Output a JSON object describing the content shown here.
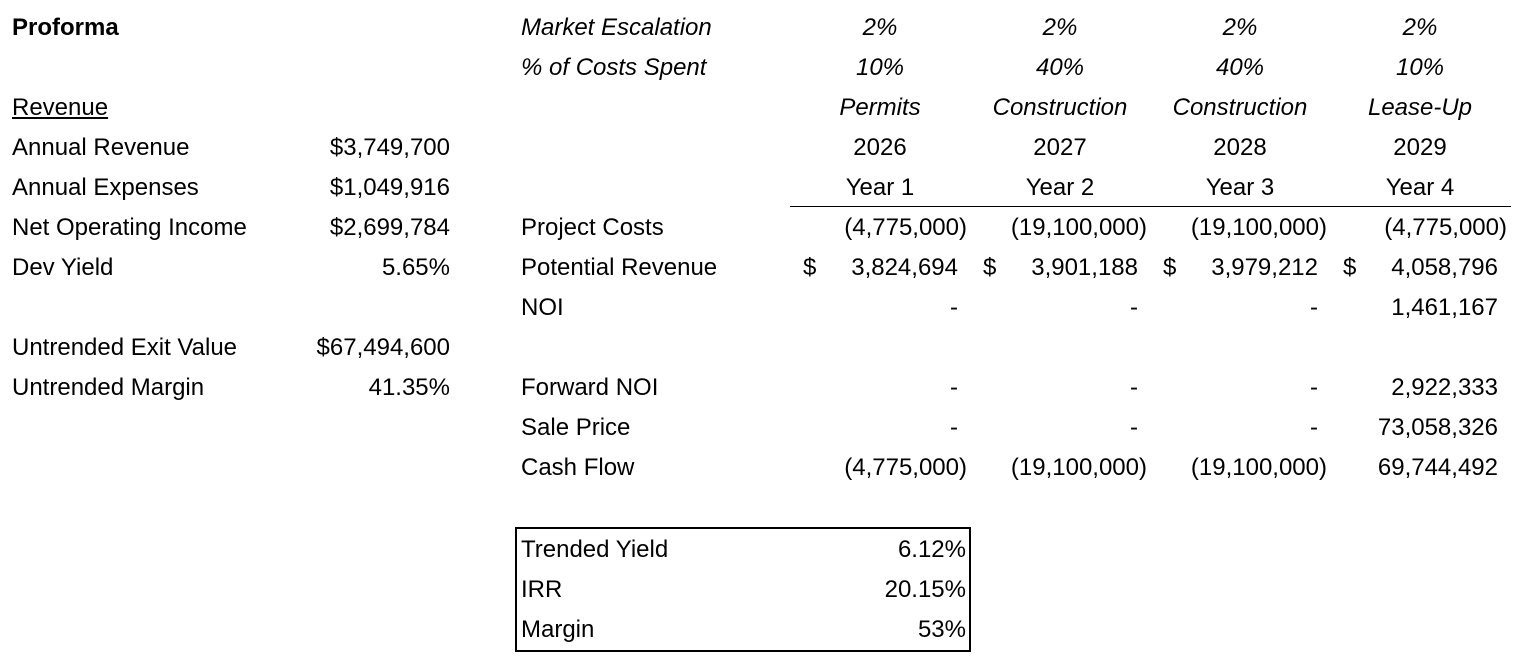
{
  "left": {
    "title": "Proforma",
    "revenue_header": "Revenue",
    "rows": [
      {
        "label": "Annual Revenue",
        "value": "$3,749,700"
      },
      {
        "label": "Annual Expenses",
        "value": "$1,049,916"
      },
      {
        "label": "Net Operating Income",
        "value": "$2,699,784"
      },
      {
        "label": "Dev Yield",
        "value": "5.65%"
      }
    ],
    "rows2": [
      {
        "label": "Untrended Exit Value",
        "value": "$67,494,600"
      },
      {
        "label": "Untrended Margin",
        "value": "41.35%"
      }
    ]
  },
  "right": {
    "market_escalation_label": "Market Escalation",
    "costs_spent_label": "% of Costs Spent",
    "years": [
      {
        "escalation": "2%",
        "costs_spent": "10%",
        "phase": "Permits",
        "calendar_year": "2026",
        "year_label": "Year 1"
      },
      {
        "escalation": "2%",
        "costs_spent": "40%",
        "phase": "Construction",
        "calendar_year": "2027",
        "year_label": "Year 2"
      },
      {
        "escalation": "2%",
        "costs_spent": "40%",
        "phase": "Construction",
        "calendar_year": "2028",
        "year_label": "Year 3"
      },
      {
        "escalation": "2%",
        "costs_spent": "10%",
        "phase": "Lease-Up",
        "calendar_year": "2029",
        "year_label": "Year 4"
      }
    ],
    "project_costs": {
      "label": "Project Costs",
      "values": [
        "(4,775,000)",
        "(19,100,000)",
        "(19,100,000)",
        "(4,775,000)"
      ]
    },
    "potential_revenue": {
      "label": "Potential Revenue",
      "currency": "$",
      "values": [
        "3,824,694",
        "3,901,188",
        "3,979,212",
        "4,058,796"
      ]
    },
    "noi": {
      "label": "NOI",
      "values": [
        "-",
        "-",
        "-",
        "1,461,167"
      ]
    },
    "forward_noi": {
      "label": "Forward NOI",
      "values": [
        "-",
        "-",
        "-",
        "2,922,333"
      ]
    },
    "sale_price": {
      "label": "Sale Price",
      "values": [
        "-",
        "-",
        "-",
        "73,058,326"
      ]
    },
    "cash_flow": {
      "label": "Cash Flow",
      "values": [
        "(4,775,000)",
        "(19,100,000)",
        "(19,100,000)",
        "69,744,492"
      ]
    }
  },
  "summary": {
    "rows": [
      {
        "label": "Trended Yield",
        "value": "6.12%"
      },
      {
        "label": "IRR",
        "value": "20.15%"
      },
      {
        "label": "Margin",
        "value": "53%"
      }
    ]
  }
}
